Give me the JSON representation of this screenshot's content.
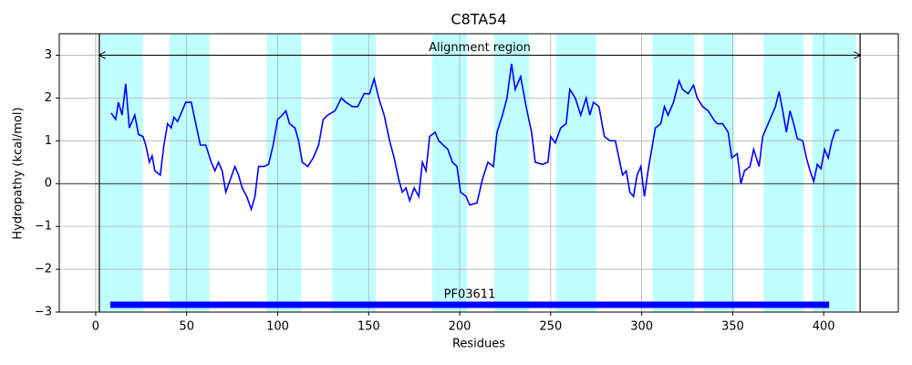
{
  "chart_data": {
    "type": "line",
    "title": "C8TA54",
    "x_label": "Residues",
    "y_label": "Hydropathy (kcal/mol)",
    "xlim": [
      -20,
      441
    ],
    "ylim": [
      -3,
      3.5
    ],
    "xticks": [
      0,
      50,
      100,
      150,
      200,
      250,
      300,
      350,
      400
    ],
    "yticks": [
      {
        "value": -3,
        "label": "−3"
      },
      {
        "value": -2,
        "label": "−2"
      },
      {
        "value": -1,
        "label": "−1"
      },
      0,
      1,
      2,
      3
    ],
    "grid": true,
    "region_color": "#bfffff",
    "regions": [
      [
        2.5,
        26
      ],
      [
        40.5,
        62.5
      ],
      [
        94,
        113
      ],
      [
        130,
        154
      ],
      [
        185,
        204
      ],
      [
        219,
        238
      ],
      [
        253,
        275
      ],
      [
        306,
        329
      ],
      [
        334,
        351
      ],
      [
        367,
        389
      ],
      [
        394,
        418
      ]
    ],
    "alignment_region": {
      "label": "Alignment region",
      "start": 2,
      "end": 420,
      "y": 3
    },
    "domains": [
      {
        "name": "PF03611",
        "start": 8,
        "end": 403,
        "y": -2.83,
        "color": "#0000ff"
      }
    ],
    "x": [
      8.5,
      11,
      12.5,
      14.5,
      16.5,
      18.5,
      21.5,
      23.5,
      26,
      27.5,
      29.5,
      31,
      32.5,
      35.5,
      37.5,
      39.5,
      41.5,
      43,
      45,
      46.5,
      49.5,
      52.5,
      55,
      57.5,
      60.5,
      63.5,
      65.5,
      67.5,
      69.5,
      71.5,
      74,
      76.5,
      78.5,
      80.5,
      83,
      85.5,
      87.5,
      89.5,
      92.5,
      95,
      97.5,
      100,
      102.5,
      104.5,
      106.5,
      109.5,
      111.5,
      113.5,
      116.5,
      119.5,
      122.5,
      125,
      127.5,
      131.5,
      135,
      137.5,
      141,
      144,
      147.5,
      150.5,
      153,
      155.5,
      158.5,
      161.5,
      164,
      166.5,
      168.5,
      170.5,
      172.5,
      175,
      177.5,
      179.5,
      181.5,
      183.5,
      186.5,
      188.5,
      191,
      193.5,
      196,
      198.5,
      200.5,
      203.5,
      205.5,
      209.5,
      212.5,
      215.5,
      218.5,
      220.5,
      223.5,
      226,
      228.5,
      230.5,
      233.5,
      236.5,
      239.5,
      241.5,
      245.5,
      248.5,
      250,
      252.5,
      255.5,
      258.5,
      260.5,
      263.5,
      266.5,
      269.5,
      271.5,
      273.5,
      276.5,
      279.5,
      282.5,
      285.5,
      287.5,
      289.5,
      291.5,
      293.5,
      295.5,
      297.5,
      299.5,
      301.5,
      303.5,
      305.5,
      307.5,
      310.5,
      312.5,
      314.5,
      317.5,
      320.5,
      322.5,
      325.5,
      328.5,
      330.5,
      333.5,
      336.5,
      339.5,
      341.5,
      344.5,
      347.5,
      349.5,
      352.5,
      354.5,
      356.5,
      359.5,
      361.5,
      364.5,
      366.5,
      368.5,
      370.5,
      373.5,
      375.5,
      377.5,
      379.5,
      381.5,
      383.5,
      385.5,
      388.5,
      390.5,
      392.5,
      394.5,
      396.5,
      398.5,
      400.5,
      402.5,
      404.5,
      406.5,
      408.5
    ],
    "series": [
      {
        "name": "Hydropathy",
        "color": "#0000ff",
        "values": [
          1.65,
          1.5,
          1.9,
          1.6,
          2.33,
          1.3,
          1.6,
          1.15,
          1.1,
          0.9,
          0.5,
          0.65,
          0.3,
          0.2,
          0.9,
          1.4,
          1.3,
          1.55,
          1.45,
          1.6,
          1.9,
          1.9,
          1.4,
          0.9,
          0.9,
          0.5,
          0.3,
          0.5,
          0.3,
          -0.2,
          0.1,
          0.4,
          0.2,
          -0.1,
          -0.3,
          -0.6,
          -0.3,
          0.4,
          0.4,
          0.45,
          0.9,
          1.5,
          1.6,
          1.7,
          1.4,
          1.3,
          1.0,
          0.5,
          0.4,
          0.6,
          0.9,
          1.5,
          1.6,
          1.7,
          2.0,
          1.9,
          1.8,
          1.8,
          2.1,
          2.1,
          2.45,
          2.0,
          1.6,
          1.0,
          0.6,
          0.1,
          -0.2,
          -0.1,
          -0.4,
          -0.1,
          -0.3,
          0.5,
          0.3,
          1.1,
          1.2,
          1.0,
          0.9,
          0.8,
          0.5,
          0.4,
          -0.2,
          -0.3,
          -0.5,
          -0.45,
          0.1,
          0.5,
          0.4,
          1.2,
          1.6,
          2.0,
          2.8,
          2.2,
          2.5,
          1.8,
          1.2,
          0.5,
          0.45,
          0.5,
          1.1,
          0.95,
          1.3,
          1.4,
          2.2,
          2.0,
          1.6,
          2.0,
          1.6,
          1.9,
          1.8,
          1.1,
          1.0,
          1.0,
          0.6,
          0.2,
          0.3,
          -0.2,
          -0.3,
          0.2,
          0.4,
          -0.3,
          0.3,
          0.8,
          1.3,
          1.4,
          1.8,
          1.6,
          1.9,
          2.4,
          2.2,
          2.1,
          2.3,
          2.0,
          1.8,
          1.7,
          1.5,
          1.4,
          1.4,
          1.2,
          0.6,
          0.7,
          0.0,
          0.3,
          0.4,
          0.8,
          0.4,
          1.1,
          1.3,
          1.5,
          1.8,
          2.15,
          1.7,
          1.2,
          1.7,
          1.4,
          1.05,
          1.0,
          0.6,
          0.3,
          0.05,
          0.45,
          0.35,
          0.8,
          0.6,
          1.0,
          1.25,
          1.25
        ]
      }
    ]
  }
}
